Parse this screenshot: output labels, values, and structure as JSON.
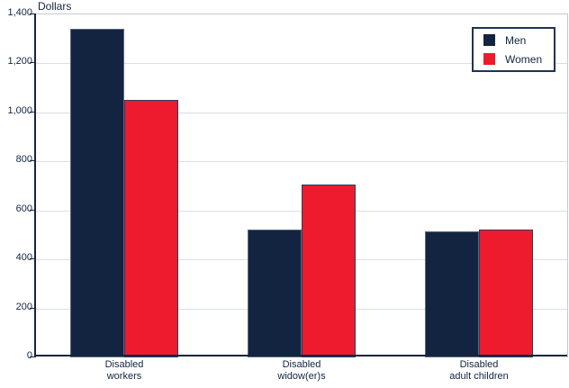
{
  "chart_data": {
    "type": "bar",
    "title": "",
    "xlabel": "",
    "ylabel": "Dollars",
    "categories": [
      "Disabled\nworkers",
      "Disabled\nwidow(er)s",
      "Disabled\nadult children"
    ],
    "series": [
      {
        "name": "Men",
        "color": "#132440",
        "border_color": "#5c6880",
        "values": [
          1340,
          520,
          515
        ]
      },
      {
        "name": "Women",
        "color": "#ed1b2d",
        "border_color": "#2c3d5c",
        "values": [
          1050,
          705,
          520
        ]
      }
    ],
    "ylim": [
      0,
      1400
    ],
    "ytick_step": 200,
    "ytick_format": "comma",
    "grid": true,
    "legend_position": "top-right",
    "colors": {
      "axis": "#13253f",
      "gridline": "#dcdee8",
      "plot_border": "#c6c9d2",
      "text": "#13253f",
      "background": "#ffffff"
    }
  }
}
